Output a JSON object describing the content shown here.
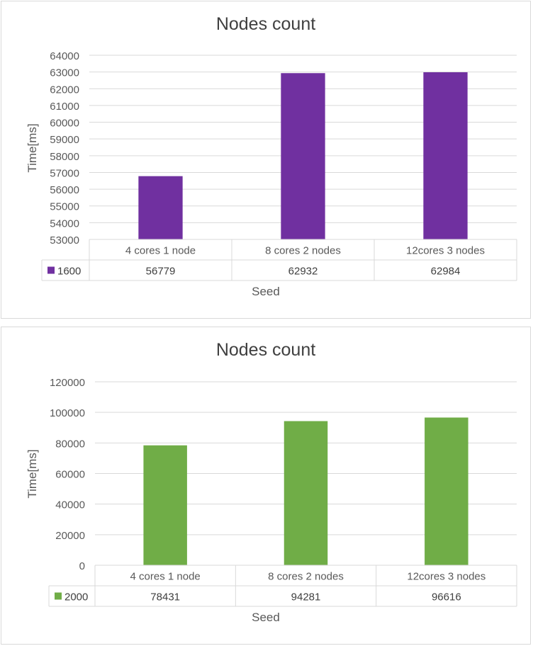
{
  "chart_data": [
    {
      "type": "bar",
      "title": "Nodes count",
      "xlabel": "Seed",
      "ylabel": "Time[ms]",
      "categories": [
        "4 cores 1 node",
        "8 cores 2 nodes",
        "12cores 3 nodes"
      ],
      "series": [
        {
          "name": "1600",
          "values": [
            56779,
            62932,
            62984
          ]
        }
      ],
      "ylim": [
        53000,
        64000
      ],
      "yticks": [
        53000,
        54000,
        55000,
        56000,
        57000,
        58000,
        59000,
        60000,
        61000,
        62000,
        63000,
        64000
      ],
      "color": "#7030a0",
      "grid": true,
      "data_table": true
    },
    {
      "type": "bar",
      "title": "Nodes count",
      "xlabel": "Seed",
      "ylabel": "Time[ms]",
      "categories": [
        "4 cores 1 node",
        "8 cores 2 nodes",
        "12cores 3 nodes"
      ],
      "series": [
        {
          "name": "2000",
          "values": [
            78431,
            94281,
            96616
          ]
        }
      ],
      "ylim": [
        0,
        120000
      ],
      "yticks": [
        0,
        20000,
        40000,
        60000,
        80000,
        100000,
        120000
      ],
      "color": "#70ad47",
      "grid": true,
      "data_table": true
    }
  ]
}
